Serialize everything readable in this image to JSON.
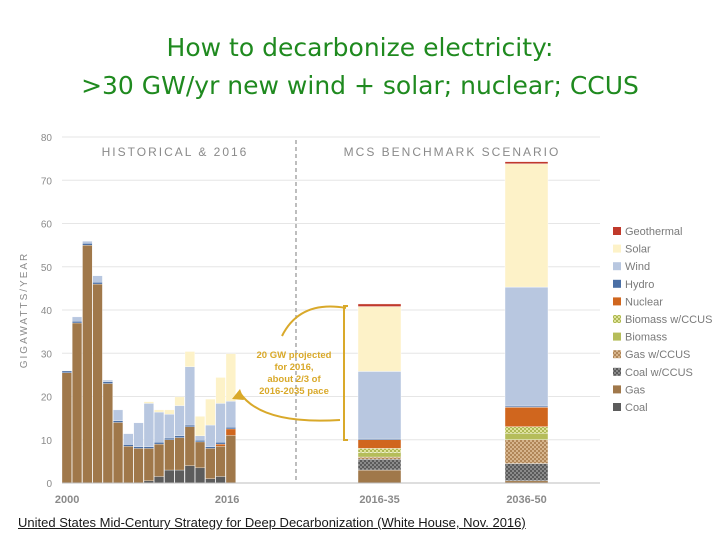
{
  "title_line1": "How to decarbonize electricity:",
  "title_line2": ">30 GW/yr new wind + solar; nuclear; CCUS",
  "source": "United States Mid-Century Strategy for Deep Decarbonization (White House, Nov. 2016)",
  "annotation": [
    "20 GW projected",
    "for 2016,",
    "about 2/3 of",
    "2016-2035 pace"
  ],
  "chart_data": {
    "type": "bar",
    "stacked": true,
    "ylabel": "GIGAWATTS/YEAR",
    "ylim": [
      0,
      80
    ],
    "yticks": [
      0,
      10,
      20,
      30,
      40,
      50,
      60,
      70,
      80
    ],
    "section_labels": [
      "HISTORICAL & 2016",
      "MCS BENCHMARK SCENARIO"
    ],
    "x_labels": [
      {
        "text": "2000",
        "at": "first-bar"
      },
      {
        "text": "2016",
        "at": "last-historical-bar"
      },
      {
        "text": "2016-35",
        "at": "scenario-bar-1"
      },
      {
        "text": "2036-50",
        "at": "scenario-bar-2"
      }
    ],
    "legend": [
      "Geothermal",
      "Solar",
      "Wind",
      "Hydro",
      "Nuclear",
      "Biomass w/CCUS",
      "Biomass",
      "Gas w/CCUS",
      "Coal w/CCUS",
      "Gas",
      "Coal"
    ],
    "colors": {
      "Geothermal": "#c0392b",
      "Solar": "#fdf2c8",
      "Wind": "#b8c7e0",
      "Hydro": "#4a6fa5",
      "Nuclear": "#d0661e",
      "Biomass w/CCUS": "#c5cf7a",
      "Biomass": "#b5bd5a",
      "Gas w/CCUS": "#c9a27a",
      "Coal w/CCUS": "#7a7a7a",
      "Gas": "#a0784a",
      "Coal": "#5c5c5c"
    },
    "historical": {
      "years": [
        2000,
        2001,
        2002,
        2003,
        2004,
        2005,
        2006,
        2007,
        2008,
        2009,
        2010,
        2011,
        2012,
        2013,
        2014,
        2015,
        2016
      ],
      "series": [
        {
          "name": "Coal",
          "values": [
            0,
            0,
            0,
            0,
            0,
            0,
            0,
            0,
            0.5,
            1.5,
            3,
            3,
            4,
            3.5,
            1,
            1.5,
            0
          ]
        },
        {
          "name": "Gas",
          "values": [
            25.5,
            37,
            55,
            46,
            23,
            14,
            8.5,
            8,
            7.5,
            7.5,
            7,
            7.5,
            9,
            6,
            7,
            7,
            11
          ]
        },
        {
          "name": "Nuclear",
          "values": [
            0,
            0,
            0,
            0,
            0,
            0,
            0,
            0,
            0,
            0,
            0,
            0,
            0,
            0,
            0,
            0.5,
            1.5
          ]
        },
        {
          "name": "Hydro",
          "values": [
            0.4,
            0.4,
            0.4,
            0.4,
            0.4,
            0.4,
            0.4,
            0.4,
            0.4,
            0.4,
            0.4,
            0.4,
            0.4,
            0.4,
            0.4,
            0.4,
            0.4
          ]
        },
        {
          "name": "Wind",
          "values": [
            0,
            1,
            0.5,
            1.5,
            0.4,
            2.5,
            2.5,
            5.5,
            10,
            7,
            5.5,
            7,
            13.5,
            1,
            5,
            9,
            6
          ]
        },
        {
          "name": "Solar",
          "values": [
            0,
            0,
            0,
            0,
            0,
            0,
            0,
            0,
            0.4,
            0.5,
            1,
            2,
            3.5,
            4.5,
            6,
            6,
            11
          ]
        },
        {
          "name": "Geothermal",
          "values": [
            0,
            0,
            0,
            0,
            0,
            0,
            0,
            0,
            0,
            0,
            0,
            0,
            0,
            0,
            0,
            0,
            0
          ]
        }
      ]
    },
    "scenario": {
      "categories": [
        "2016-35",
        "2036-50"
      ],
      "series": [
        {
          "name": "Coal",
          "values": [
            0,
            0
          ]
        },
        {
          "name": "Gas",
          "values": [
            3,
            0.5
          ]
        },
        {
          "name": "Coal w/CCUS",
          "values": [
            2.5,
            4
          ]
        },
        {
          "name": "Gas w/CCUS",
          "values": [
            0.5,
            5.5
          ]
        },
        {
          "name": "Biomass",
          "values": [
            1,
            1.5
          ]
        },
        {
          "name": "Biomass w/CCUS",
          "values": [
            1,
            1.5
          ]
        },
        {
          "name": "Nuclear",
          "values": [
            2,
            4.5
          ]
        },
        {
          "name": "Hydro",
          "values": [
            0.3,
            0.3
          ]
        },
        {
          "name": "Wind",
          "values": [
            15.5,
            27.5
          ]
        },
        {
          "name": "Solar",
          "values": [
            15,
            28.5
          ]
        },
        {
          "name": "Geothermal",
          "values": [
            0.6,
            0.5
          ]
        }
      ]
    }
  }
}
